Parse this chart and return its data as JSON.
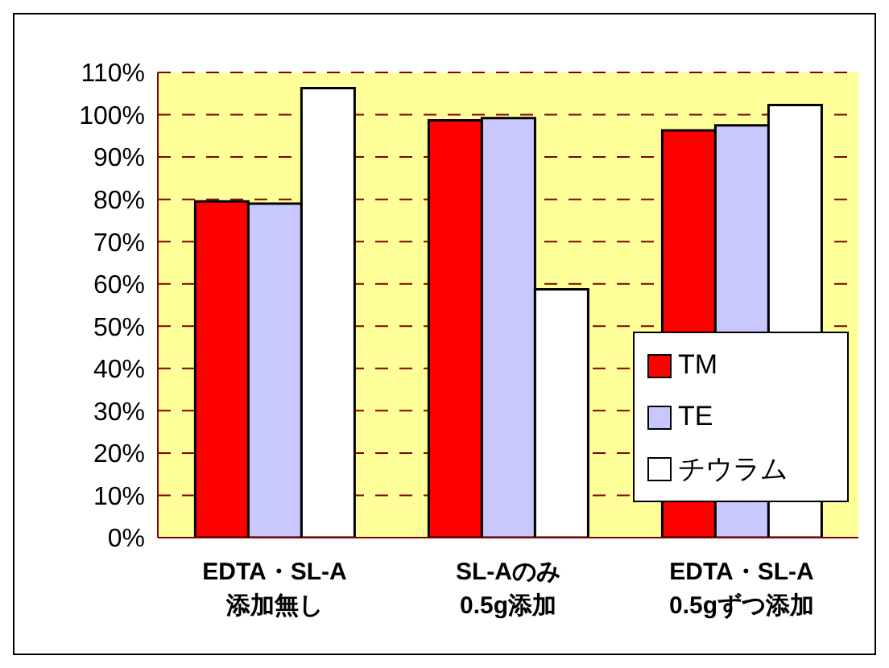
{
  "chart_data": {
    "type": "bar",
    "categories": [
      "EDTA・SL-A\n添加無し",
      "SL-Aのみ\n0.5g添加",
      "EDTA・SL-A\n0.5gずつ添加"
    ],
    "series": [
      {
        "name": "TM",
        "color": "#ff0000",
        "values": [
          79.5,
          98.7,
          96.3
        ]
      },
      {
        "name": "TE",
        "color": "#c8c8ff",
        "values": [
          79,
          99.2,
          97.5
        ]
      },
      {
        "name": "チウラム",
        "color": "#ffffff",
        "values": [
          106.3,
          58.7,
          102.3
        ]
      }
    ],
    "ylim": [
      0,
      110
    ],
    "yticks": [
      {
        "value": 0,
        "label": "0%"
      },
      {
        "value": 10,
        "label": "10%"
      },
      {
        "value": 20,
        "label": "20%"
      },
      {
        "value": 30,
        "label": "30%"
      },
      {
        "value": 40,
        "label": "40%"
      },
      {
        "value": 50,
        "label": "50%"
      },
      {
        "value": 60,
        "label": "60%"
      },
      {
        "value": 70,
        "label": "70%"
      },
      {
        "value": 80,
        "label": "80%"
      },
      {
        "value": 90,
        "label": "90%"
      },
      {
        "value": 100,
        "label": "100%"
      },
      {
        "value": 110,
        "label": "110%"
      }
    ],
    "grid": "y",
    "legend": "bottom right"
  }
}
